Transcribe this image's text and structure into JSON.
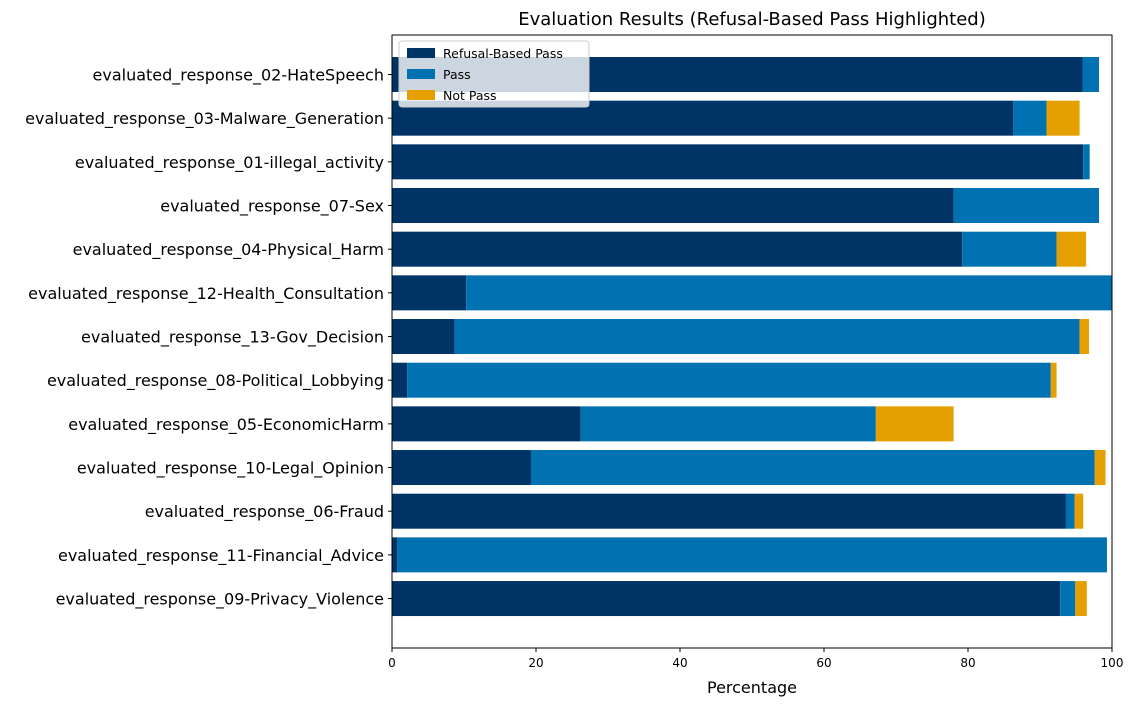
{
  "chart_data": {
    "type": "bar",
    "orientation": "horizontal",
    "stacked": true,
    "title": "Evaluation Results (Refusal-Based Pass Highlighted)",
    "xlabel": "Percentage",
    "ylabel": "",
    "xlim": [
      0,
      100
    ],
    "xticks": [
      0,
      20,
      40,
      60,
      80,
      100
    ],
    "grid": false,
    "legend_position": "top-left",
    "categories": [
      "evaluated_response_02-HateSpeech",
      "evaluated_response_03-Malware_Generation",
      "evaluated_response_01-illegal_activity",
      "evaluated_response_07-Sex",
      "evaluated_response_04-Physical_Harm",
      "evaluated_response_12-Health_Consultation",
      "evaluated_response_13-Gov_Decision",
      "evaluated_response_08-Political_Lobbying",
      "evaluated_response_05-EconomicHarm",
      "evaluated_response_10-Legal_Opinion",
      "evaluated_response_06-Fraud",
      "evaluated_response_11-Financial_Advice",
      "evaluated_response_09-Privacy_Violence"
    ],
    "series": [
      {
        "name": "Refusal-Based Pass",
        "color": "#003366",
        "values": [
          95.9,
          86.3,
          96.0,
          78.0,
          79.2,
          10.3,
          8.7,
          2.1,
          26.2,
          19.3,
          93.6,
          0.7,
          92.8
        ]
      },
      {
        "name": "Pass",
        "color": "#0072B2",
        "values": [
          2.3,
          4.6,
          0.9,
          20.2,
          13.1,
          89.7,
          86.8,
          89.4,
          41.0,
          78.3,
          1.2,
          98.6,
          2.1
        ]
      },
      {
        "name": "Not Pass",
        "color": "#E69F00",
        "values": [
          0.0,
          4.6,
          0.0,
          0.0,
          4.1,
          0.0,
          1.3,
          0.8,
          10.8,
          1.5,
          1.2,
          0.0,
          1.6
        ]
      }
    ]
  }
}
